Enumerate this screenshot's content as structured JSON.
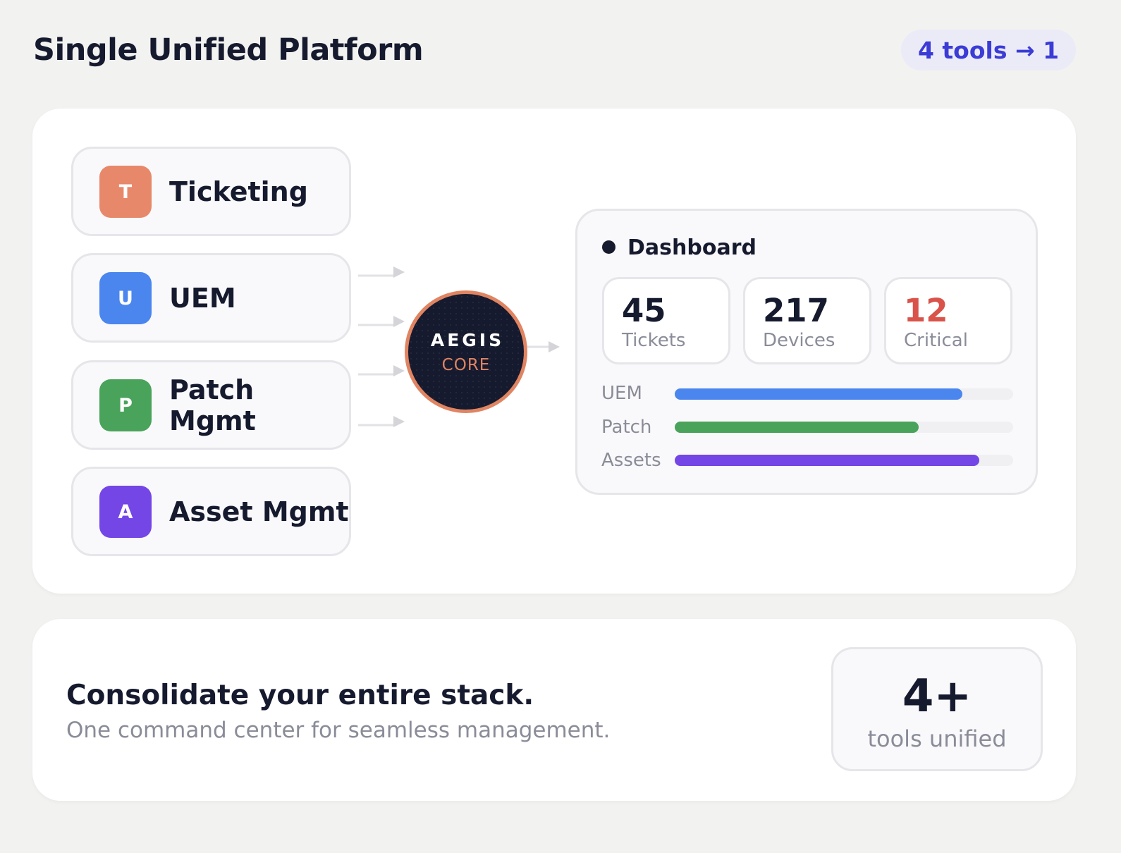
{
  "header": {
    "title": "Single Unified Platform",
    "badge": "4 tools → 1"
  },
  "tools": [
    {
      "letter": "T",
      "label": "Ticketing",
      "color": "#e8886a"
    },
    {
      "letter": "U",
      "label": "UEM",
      "color": "#4a86ee"
    },
    {
      "letter": "P",
      "label": "Patch Mgmt",
      "color": "#4aa35a"
    },
    {
      "letter": "A",
      "label": "Asset Mgmt",
      "color": "#7446e6"
    }
  ],
  "core": {
    "title": "AEGIS",
    "subtitle": "CORE"
  },
  "dashboard": {
    "title": "Dashboard",
    "stats": [
      {
        "value": "45",
        "label": "Tickets",
        "color": "#161a2e"
      },
      {
        "value": "217",
        "label": "Devices",
        "color": "#161a2e"
      },
      {
        "value": "12",
        "label": "Critical",
        "color": "#d9534a"
      }
    ],
    "bars": [
      {
        "label": "UEM",
        "fraction": 0.85,
        "color": "#4a86ee"
      },
      {
        "label": "Patch",
        "fraction": 0.72,
        "color": "#4aa35a"
      },
      {
        "label": "Assets",
        "fraction": 0.9,
        "color": "#7446e6"
      }
    ]
  },
  "cta": {
    "title": "Consolidate your entire stack.",
    "subtitle": "One command center for seamless management.",
    "metric_value": "4+",
    "metric_label": "tools unified"
  }
}
